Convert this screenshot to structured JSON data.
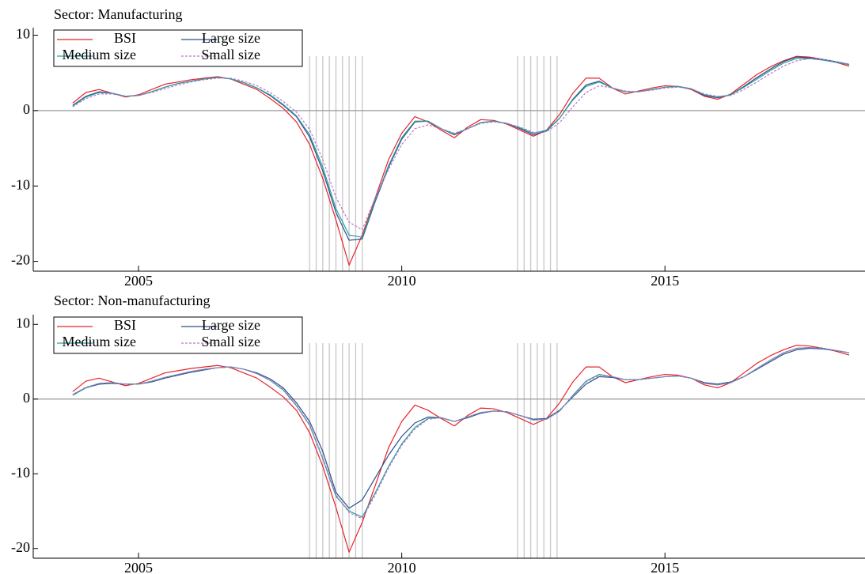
{
  "chart_data": [
    {
      "type": "line",
      "title": "Sector: Manufacturing",
      "x": [
        2003.75,
        2004,
        2004.25,
        2004.5,
        2004.75,
        2005,
        2005.25,
        2005.5,
        2005.75,
        2006,
        2006.25,
        2006.5,
        2006.75,
        2007,
        2007.25,
        2007.5,
        2007.75,
        2008,
        2008.25,
        2008.5,
        2008.75,
        2009,
        2009.25,
        2009.5,
        2009.75,
        2010,
        2010.25,
        2010.5,
        2010.75,
        2011,
        2011.25,
        2011.5,
        2011.75,
        2012,
        2012.25,
        2012.5,
        2012.75,
        2013,
        2013.25,
        2013.5,
        2013.75,
        2014,
        2014.25,
        2014.5,
        2014.75,
        2015,
        2015.25,
        2015.5,
        2015.75,
        2016,
        2016.25,
        2016.5,
        2016.75,
        2017,
        2017.25,
        2017.5,
        2017.75,
        2018,
        2018.25,
        2018.5
      ],
      "series": [
        {
          "name": "BSI",
          "color": "#e8232b",
          "dashed": false,
          "values": [
            1.0,
            2.4,
            2.8,
            2.3,
            1.8,
            2.1,
            2.8,
            3.5,
            3.8,
            4.1,
            4.3,
            4.5,
            4.2,
            3.5,
            2.8,
            1.6,
            0.3,
            -1.5,
            -4.5,
            -9,
            -14.5,
            -20.5,
            -16.5,
            -11.5,
            -6.5,
            -3,
            -0.8,
            -1.5,
            -2.6,
            -3.6,
            -2.2,
            -1.2,
            -1.3,
            -1.8,
            -2.6,
            -3.4,
            -2.6,
            -0.5,
            2.3,
            4.3,
            4.3,
            3.0,
            2.2,
            2.6,
            3.0,
            3.3,
            3.2,
            2.8,
            1.9,
            1.5,
            2.2,
            3.5,
            4.8,
            5.8,
            6.6,
            7.2,
            7.1,
            6.8,
            6.4,
            5.9
          ]
        },
        {
          "name": "Large size",
          "color": "#2b4f8c",
          "dashed": false,
          "values": [
            0.7,
            1.9,
            2.5,
            2.3,
            1.9,
            2.0,
            2.5,
            3.1,
            3.6,
            3.9,
            4.2,
            4.4,
            4.2,
            3.7,
            3.0,
            2.0,
            0.7,
            -0.8,
            -3.5,
            -8,
            -13.5,
            -17.2,
            -17.0,
            -12,
            -7.5,
            -3.8,
            -1.5,
            -1.4,
            -2.4,
            -3.2,
            -2.4,
            -1.6,
            -1.4,
            -1.7,
            -2.4,
            -3.2,
            -2.7,
            -1.0,
            1.5,
            3.4,
            3.9,
            3.0,
            2.5,
            2.5,
            2.8,
            3.1,
            3.2,
            2.9,
            2.0,
            1.7,
            2.1,
            3.2,
            4.4,
            5.5,
            6.5,
            7.1,
            7.0,
            6.8,
            6.5,
            6.1
          ]
        },
        {
          "name": "Medium size",
          "color": "#26a09c",
          "dashed": false,
          "values": [
            0.6,
            1.8,
            2.4,
            2.3,
            1.9,
            2.0,
            2.5,
            3.1,
            3.6,
            3.9,
            4.2,
            4.4,
            4.2,
            3.7,
            3.0,
            2.1,
            0.8,
            -0.7,
            -3.2,
            -7.5,
            -13,
            -16.5,
            -16.8,
            -11.8,
            -7.3,
            -3.6,
            -1.4,
            -1.4,
            -2.4,
            -3.1,
            -2.4,
            -1.6,
            -1.4,
            -1.7,
            -2.3,
            -3.0,
            -2.6,
            -1.0,
            1.4,
            3.2,
            3.8,
            3.0,
            2.5,
            2.5,
            2.8,
            3.1,
            3.2,
            2.9,
            2.1,
            1.8,
            2.1,
            3.1,
            4.2,
            5.3,
            6.3,
            6.9,
            6.9,
            6.7,
            6.4,
            6.1
          ]
        },
        {
          "name": "Small size",
          "color": "#c274c8",
          "dashed": true,
          "values": [
            0.5,
            1.6,
            2.2,
            2.2,
            1.9,
            2.0,
            2.4,
            2.9,
            3.4,
            3.8,
            4.1,
            4.3,
            4.3,
            3.9,
            3.3,
            2.4,
            1.2,
            -0.2,
            -2.5,
            -6.5,
            -11.5,
            -14.8,
            -15.8,
            -11.5,
            -7.8,
            -4.5,
            -2.4,
            -1.9,
            -2.4,
            -3.0,
            -2.4,
            -1.7,
            -1.5,
            -1.7,
            -2.2,
            -2.9,
            -2.8,
            -1.6,
            0.5,
            2.4,
            3.3,
            3.0,
            2.6,
            2.5,
            2.7,
            3.0,
            3.1,
            2.9,
            2.2,
            1.9,
            2.0,
            2.8,
            3.8,
            4.9,
            5.9,
            6.6,
            6.9,
            6.8,
            6.5,
            6.2
          ]
        }
      ],
      "xlim": [
        2003,
        2018.8
      ],
      "xticks": [
        2005,
        2010,
        2015
      ],
      "ylim": [
        -21.3,
        11
      ],
      "yticks": [
        -20,
        -10,
        0,
        10
      ],
      "hline": 0,
      "vline_color": "#c8c8c8",
      "vlines": [
        2008.25,
        2008.375,
        2008.5,
        2008.625,
        2008.75,
        2008.875,
        2009,
        2009.125,
        2009.25,
        2012.2,
        2012.325,
        2012.45,
        2012.575,
        2012.7,
        2012.825,
        2012.95
      ],
      "legend": "upper left"
    },
    {
      "type": "line",
      "title": "Sector: Non-manufacturing",
      "x": [
        2003.75,
        2004,
        2004.25,
        2004.5,
        2004.75,
        2005,
        2005.25,
        2005.5,
        2005.75,
        2006,
        2006.25,
        2006.5,
        2006.75,
        2007,
        2007.25,
        2007.5,
        2007.75,
        2008,
        2008.25,
        2008.5,
        2008.75,
        2009,
        2009.25,
        2009.5,
        2009.75,
        2010,
        2010.25,
        2010.5,
        2010.75,
        2011,
        2011.25,
        2011.5,
        2011.75,
        2012,
        2012.25,
        2012.5,
        2012.75,
        2013,
        2013.25,
        2013.5,
        2013.75,
        2014,
        2014.25,
        2014.5,
        2014.75,
        2015,
        2015.25,
        2015.5,
        2015.75,
        2016,
        2016.25,
        2016.5,
        2016.75,
        2017,
        2017.25,
        2017.5,
        2017.75,
        2018,
        2018.25,
        2018.5
      ],
      "series": [
        {
          "name": "BSI",
          "color": "#e8232b",
          "dashed": false,
          "values": [
            1.0,
            2.4,
            2.8,
            2.3,
            1.8,
            2.1,
            2.8,
            3.5,
            3.8,
            4.1,
            4.3,
            4.5,
            4.2,
            3.5,
            2.8,
            1.6,
            0.3,
            -1.5,
            -4.5,
            -9,
            -14.5,
            -20.5,
            -16.5,
            -11.5,
            -6.5,
            -3,
            -0.8,
            -1.5,
            -2.6,
            -3.6,
            -2.2,
            -1.2,
            -1.3,
            -1.8,
            -2.6,
            -3.4,
            -2.6,
            -0.5,
            2.3,
            4.3,
            4.3,
            3.0,
            2.2,
            2.6,
            3.0,
            3.3,
            3.2,
            2.8,
            1.9,
            1.5,
            2.2,
            3.5,
            4.8,
            5.8,
            6.6,
            7.2,
            7.1,
            6.8,
            6.4,
            5.9
          ]
        },
        {
          "name": "Large size",
          "color": "#2b4f8c",
          "dashed": false,
          "values": [
            0.6,
            1.5,
            2.0,
            2.1,
            2.0,
            2.0,
            2.3,
            2.8,
            3.2,
            3.6,
            3.9,
            4.2,
            4.3,
            4.0,
            3.5,
            2.7,
            1.5,
            -0.5,
            -3,
            -7,
            -12.5,
            -14.6,
            -13.5,
            -10.5,
            -7.5,
            -5,
            -3.2,
            -2.4,
            -2.5,
            -3.0,
            -2.5,
            -1.9,
            -1.6,
            -1.7,
            -2.2,
            -2.7,
            -2.6,
            -1.5,
            0.3,
            2.0,
            3.0,
            2.9,
            2.6,
            2.6,
            2.8,
            3.0,
            3.1,
            2.8,
            2.2,
            2.0,
            2.3,
            3.0,
            4.0,
            5.0,
            6.0,
            6.6,
            6.8,
            6.7,
            6.5,
            6.2
          ]
        },
        {
          "name": "Medium size",
          "color": "#26a09c",
          "dashed": false,
          "values": [
            0.5,
            1.5,
            2.1,
            2.2,
            2.0,
            2.0,
            2.4,
            2.9,
            3.3,
            3.7,
            4.0,
            4.2,
            4.3,
            4.0,
            3.4,
            2.5,
            1.2,
            -0.9,
            -3.5,
            -8,
            -13,
            -15,
            -15.8,
            -12.5,
            -9,
            -6,
            -3.8,
            -2.6,
            -2.5,
            -3.0,
            -2.4,
            -1.8,
            -1.6,
            -1.7,
            -2.2,
            -2.8,
            -2.7,
            -1.6,
            0.5,
            2.4,
            3.3,
            3.0,
            2.6,
            2.6,
            2.8,
            3.0,
            3.1,
            2.8,
            2.1,
            1.9,
            2.2,
            3.0,
            4.1,
            5.2,
            6.2,
            6.8,
            6.9,
            6.8,
            6.5,
            6.2
          ]
        },
        {
          "name": "Small size",
          "color": "#c274c8",
          "dashed": true,
          "values": [
            0.6,
            1.6,
            2.1,
            2.2,
            2.0,
            2.0,
            2.4,
            2.9,
            3.3,
            3.7,
            4.0,
            4.2,
            4.3,
            4.0,
            3.4,
            2.5,
            1.3,
            -0.8,
            -3.4,
            -7.8,
            -12.8,
            -15.2,
            -16.0,
            -12.8,
            -9.2,
            -6.2,
            -4.0,
            -2.7,
            -2.5,
            -3.0,
            -2.4,
            -1.8,
            -1.6,
            -1.7,
            -2.2,
            -2.8,
            -2.7,
            -1.6,
            0.4,
            2.3,
            3.2,
            3.0,
            2.6,
            2.6,
            2.8,
            3.0,
            3.1,
            2.8,
            2.1,
            1.9,
            2.2,
            3.0,
            4.1,
            5.2,
            6.2,
            6.8,
            6.9,
            6.8,
            6.5,
            6.2
          ]
        }
      ],
      "xlim": [
        2003,
        2018.8
      ],
      "xticks": [
        2005,
        2010,
        2015
      ],
      "ylim": [
        -21.3,
        11.3
      ],
      "yticks": [
        -20,
        -10,
        0,
        10
      ],
      "hline": 0,
      "vline_color": "#c8c8c8",
      "vlines": [
        2008.25,
        2008.375,
        2008.5,
        2008.625,
        2008.75,
        2008.875,
        2009,
        2009.125,
        2009.25,
        2012.2,
        2012.325,
        2012.45,
        2012.575,
        2012.7,
        2012.825,
        2012.95
      ],
      "legend": "upper left"
    }
  ]
}
